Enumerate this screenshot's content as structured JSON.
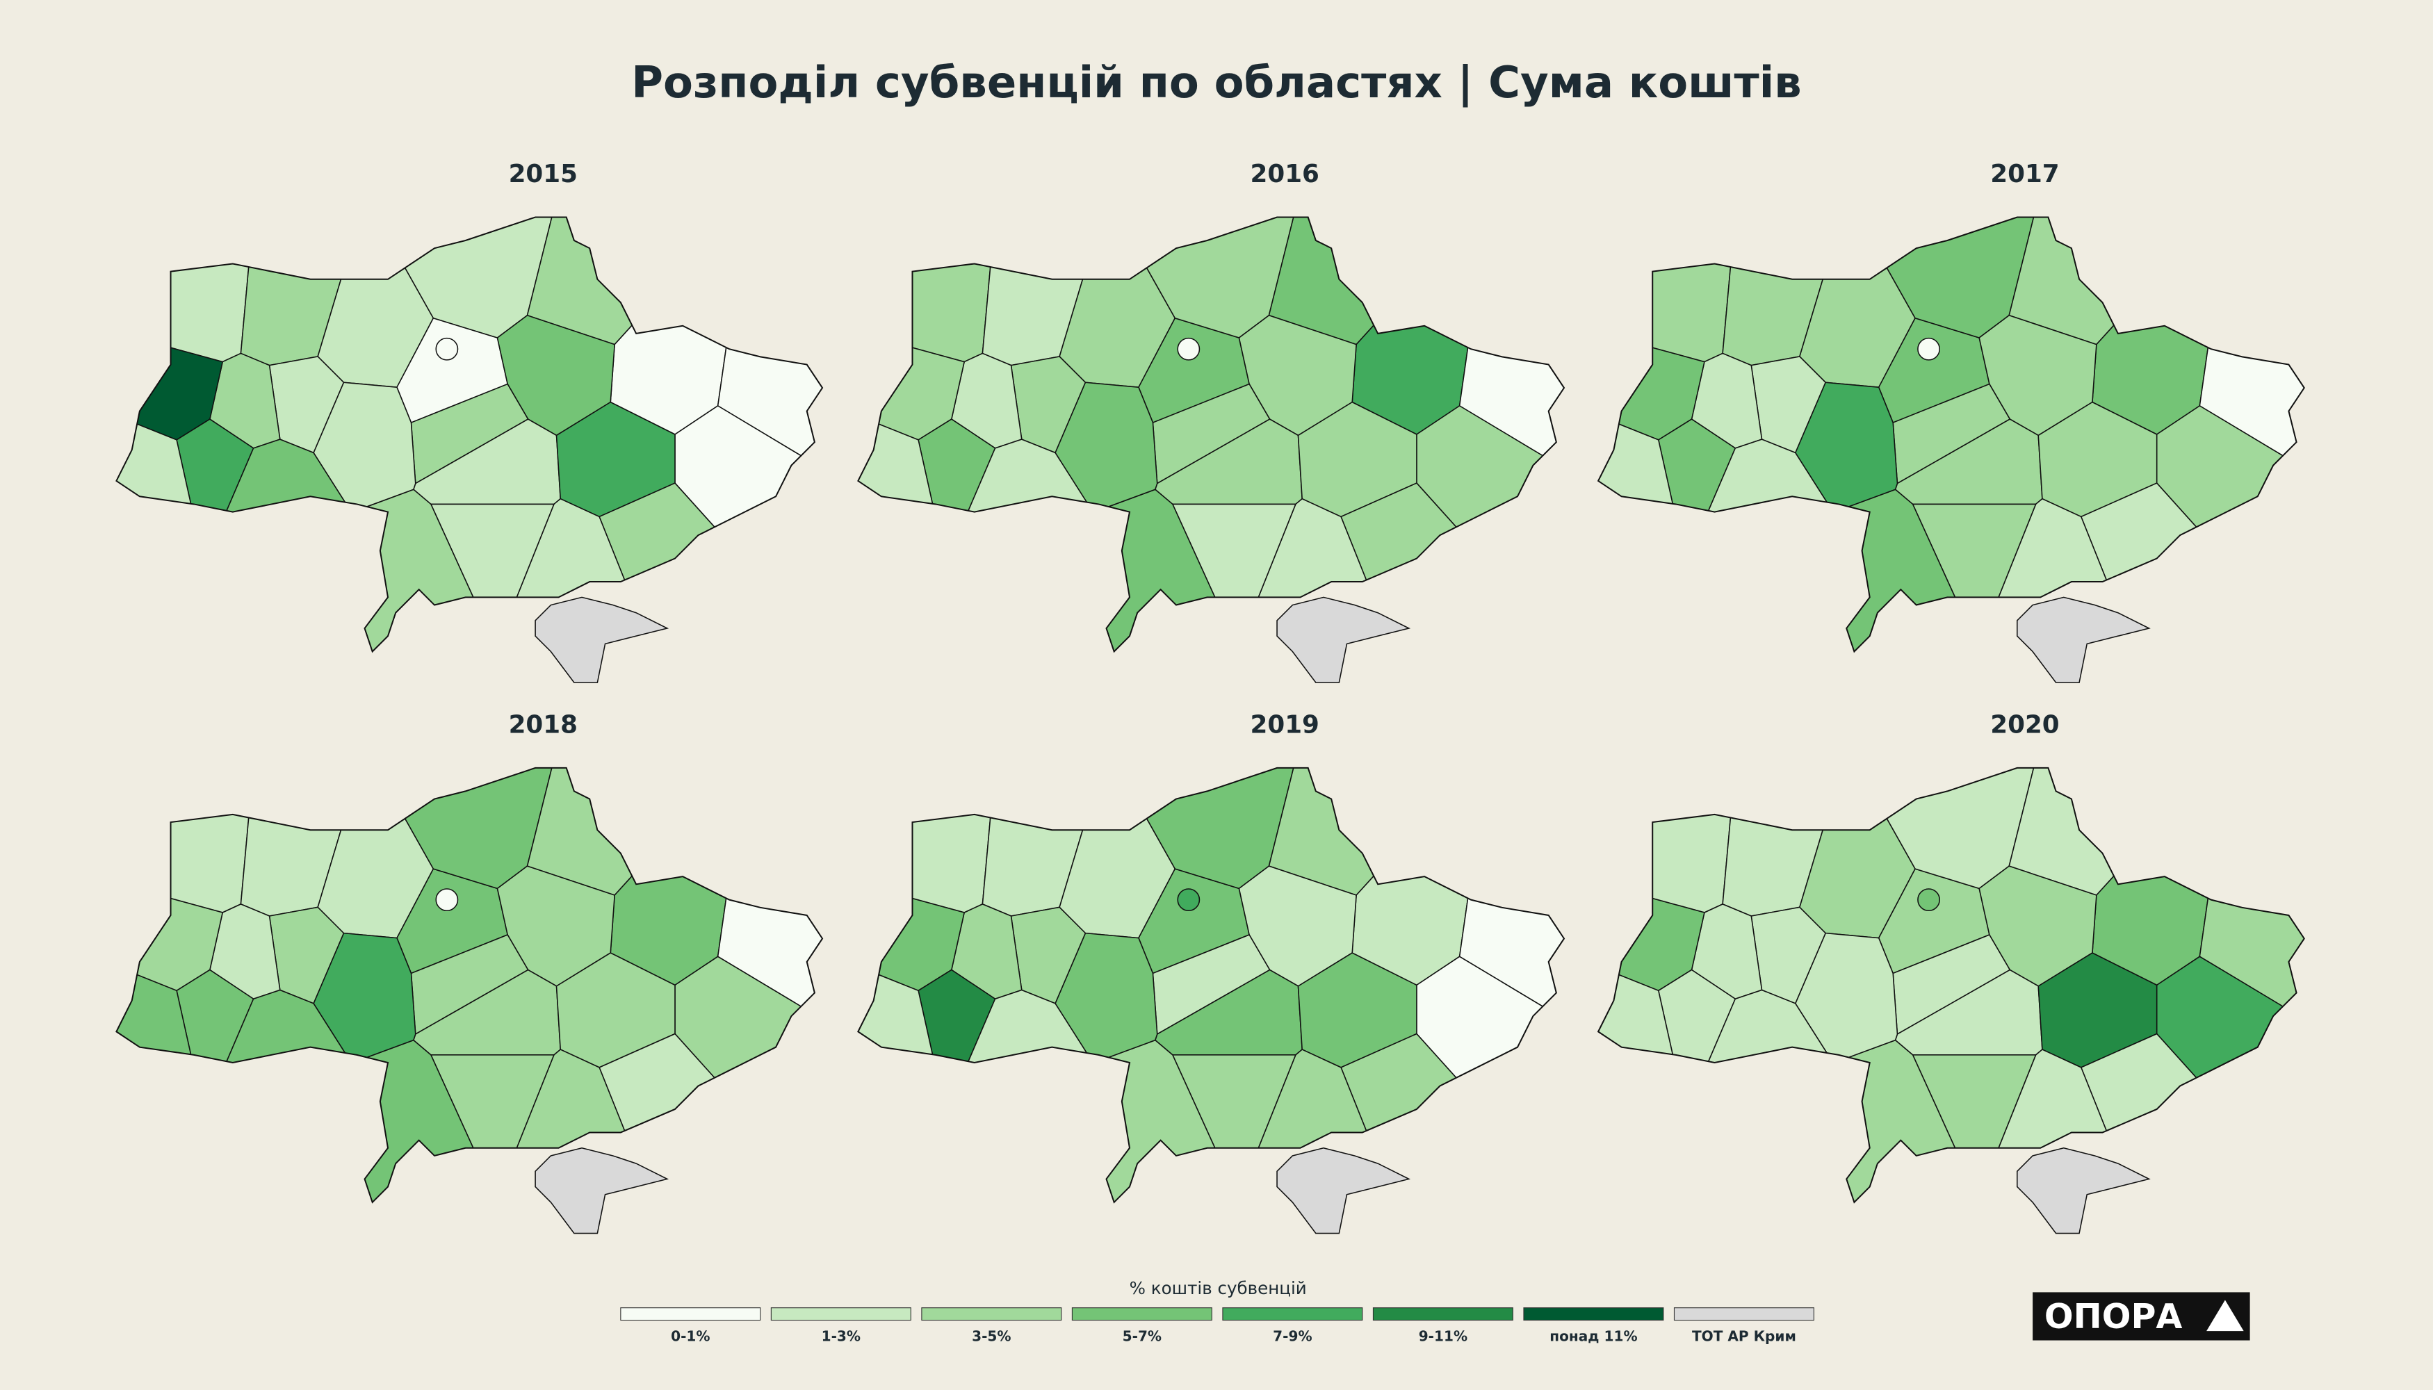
{
  "title": "Розподіл субвенцій по областях | Сума коштів",
  "maps": [
    {
      "year": "2015",
      "classes": [
        1,
        2,
        1,
        0,
        1,
        2,
        0,
        0,
        0,
        3,
        2,
        1,
        4,
        2,
        1,
        1,
        2,
        1,
        1,
        2,
        6,
        4,
        1,
        3,
        0
      ]
    },
    {
      "year": "2016",
      "classes": [
        2,
        1,
        2,
        3,
        2,
        3,
        4,
        0,
        2,
        2,
        2,
        2,
        2,
        2,
        1,
        1,
        3,
        3,
        2,
        1,
        2,
        3,
        1,
        1,
        0
      ]
    },
    {
      "year": "2017",
      "classes": [
        2,
        2,
        2,
        3,
        3,
        2,
        3,
        0,
        2,
        2,
        2,
        2,
        2,
        1,
        1,
        2,
        3,
        4,
        1,
        1,
        3,
        3,
        1,
        1,
        0
      ]
    },
    {
      "year": "2018",
      "classes": [
        1,
        1,
        1,
        3,
        3,
        2,
        3,
        0,
        2,
        2,
        2,
        2,
        2,
        1,
        2,
        2,
        3,
        4,
        2,
        1,
        2,
        3,
        3,
        3,
        0
      ]
    },
    {
      "year": "2019",
      "classes": [
        1,
        1,
        1,
        3,
        3,
        2,
        1,
        0,
        0,
        1,
        1,
        3,
        3,
        2,
        2,
        2,
        2,
        3,
        2,
        2,
        3,
        5,
        1,
        1,
        4
      ]
    },
    {
      "year": "2020",
      "classes": [
        1,
        1,
        2,
        2,
        1,
        1,
        3,
        2,
        4,
        2,
        1,
        1,
        5,
        1,
        1,
        2,
        2,
        1,
        1,
        1,
        3,
        1,
        1,
        1,
        3
      ]
    }
  ],
  "legend": {
    "title": "% коштів субвенцій",
    "items": [
      {
        "label": "0-1%",
        "color": "#f7fcf5"
      },
      {
        "label": "1-3%",
        "color": "#c7e9c0"
      },
      {
        "label": "3-5%",
        "color": "#a1d99b"
      },
      {
        "label": "5-7%",
        "color": "#74c476"
      },
      {
        "label": "7-9%",
        "color": "#41ab5d"
      },
      {
        "label": "9-11%",
        "color": "#238b45"
      },
      {
        "label": "понад 11%",
        "color": "#005a32"
      },
      {
        "label": "ТОТ АР Крим",
        "color": "#d9d9d9"
      }
    ]
  },
  "logo": "ОПОРА"
}
